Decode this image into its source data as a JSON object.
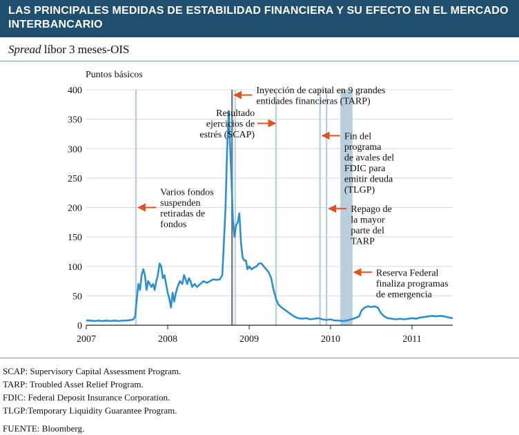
{
  "header": {
    "title": "LAS PRINCIPALES MEDIDAS DE ESTABILIDAD FINANCIERA Y SU EFECTO EN EL MERCADO INTERBANCARIO"
  },
  "subtitle": {
    "italic_part": "Spread",
    "rest": " líbor 3 meses-OIS"
  },
  "footnotes": [
    "SCAP: Supervisory Capital Assessment Program.",
    "TARP:  Troubled Asset Relief Program.",
    "FDIC: Federal Deposit Insurance Corporation.",
    "TLGP:Temporary Liquidity Guarantee Program."
  ],
  "source": "FUENTE: Bloomberg.",
  "colors": {
    "line": "#2a8fd0",
    "event_band": "#b9cfdd",
    "event_band_dark": "#6b7f8e",
    "arrow": "#e0531f",
    "grid": "#d8d8d8",
    "title_bg": "#1f4e6e"
  },
  "chart_data": {
    "type": "line",
    "ylabel": "Puntos básicos",
    "ylim": [
      0,
      400
    ],
    "yticks": [
      0,
      50,
      100,
      150,
      200,
      250,
      300,
      350,
      400
    ],
    "xlim": [
      2007.0,
      2011.5
    ],
    "xticks": [
      2007,
      2008,
      2009,
      2010,
      2011
    ],
    "x_tick_labels": [
      "2007",
      "2008",
      "2009",
      "2010",
      "2011"
    ],
    "grid": true,
    "series": [
      {
        "values": [
          [
            2007.0,
            8
          ],
          [
            2007.05,
            8
          ],
          [
            2007.1,
            7
          ],
          [
            2007.15,
            8
          ],
          [
            2007.2,
            7
          ],
          [
            2007.25,
            8
          ],
          [
            2007.3,
            7
          ],
          [
            2007.35,
            8
          ],
          [
            2007.4,
            7
          ],
          [
            2007.45,
            8
          ],
          [
            2007.5,
            8
          ],
          [
            2007.55,
            9
          ],
          [
            2007.58,
            10
          ],
          [
            2007.6,
            15
          ],
          [
            2007.62,
            45
          ],
          [
            2007.64,
            70
          ],
          [
            2007.66,
            60
          ],
          [
            2007.68,
            85
          ],
          [
            2007.7,
            95
          ],
          [
            2007.72,
            85
          ],
          [
            2007.74,
            60
          ],
          [
            2007.76,
            75
          ],
          [
            2007.78,
            70
          ],
          [
            2007.8,
            65
          ],
          [
            2007.82,
            70
          ],
          [
            2007.84,
            60
          ],
          [
            2007.86,
            75
          ],
          [
            2007.88,
            85
          ],
          [
            2007.9,
            105
          ],
          [
            2007.92,
            100
          ],
          [
            2007.94,
            80
          ],
          [
            2007.96,
            85
          ],
          [
            2007.98,
            70
          ],
          [
            2008.0,
            55
          ],
          [
            2008.02,
            45
          ],
          [
            2008.04,
            30
          ],
          [
            2008.06,
            55
          ],
          [
            2008.08,
            40
          ],
          [
            2008.1,
            55
          ],
          [
            2008.12,
            65
          ],
          [
            2008.15,
            75
          ],
          [
            2008.18,
            70
          ],
          [
            2008.2,
            85
          ],
          [
            2008.22,
            78
          ],
          [
            2008.24,
            70
          ],
          [
            2008.26,
            80
          ],
          [
            2008.28,
            75
          ],
          [
            2008.3,
            65
          ],
          [
            2008.33,
            70
          ],
          [
            2008.36,
            65
          ],
          [
            2008.4,
            70
          ],
          [
            2008.44,
            75
          ],
          [
            2008.48,
            72
          ],
          [
            2008.52,
            75
          ],
          [
            2008.56,
            78
          ],
          [
            2008.6,
            77
          ],
          [
            2008.64,
            78
          ],
          [
            2008.67,
            85
          ],
          [
            2008.69,
            140
          ],
          [
            2008.71,
            200
          ],
          [
            2008.73,
            300
          ],
          [
            2008.75,
            364
          ],
          [
            2008.77,
            290
          ],
          [
            2008.78,
            260
          ],
          [
            2008.8,
            180
          ],
          [
            2008.82,
            150
          ],
          [
            2008.84,
            170
          ],
          [
            2008.86,
            175
          ],
          [
            2008.88,
            190
          ],
          [
            2008.9,
            140
          ],
          [
            2008.92,
            115
          ],
          [
            2008.94,
            110
          ],
          [
            2008.96,
            110
          ],
          [
            2008.98,
            95
          ],
          [
            2009.0,
            100
          ],
          [
            2009.03,
            95
          ],
          [
            2009.06,
            98
          ],
          [
            2009.09,
            100
          ],
          [
            2009.12,
            105
          ],
          [
            2009.15,
            105
          ],
          [
            2009.18,
            100
          ],
          [
            2009.21,
            95
          ],
          [
            2009.24,
            90
          ],
          [
            2009.27,
            80
          ],
          [
            2009.3,
            60
          ],
          [
            2009.33,
            45
          ],
          [
            2009.36,
            35
          ],
          [
            2009.4,
            30
          ],
          [
            2009.45,
            25
          ],
          [
            2009.5,
            20
          ],
          [
            2009.55,
            15
          ],
          [
            2009.6,
            12
          ],
          [
            2009.65,
            11
          ],
          [
            2009.7,
            12
          ],
          [
            2009.75,
            10
          ],
          [
            2009.8,
            11
          ],
          [
            2009.85,
            12
          ],
          [
            2009.9,
            10
          ],
          [
            2009.95,
            9
          ],
          [
            2010.0,
            10
          ],
          [
            2010.05,
            8
          ],
          [
            2010.1,
            8
          ],
          [
            2010.15,
            7
          ],
          [
            2010.2,
            8
          ],
          [
            2010.25,
            10
          ],
          [
            2010.3,
            12
          ],
          [
            2010.35,
            15
          ],
          [
            2010.38,
            25
          ],
          [
            2010.42,
            30
          ],
          [
            2010.46,
            32
          ],
          [
            2010.5,
            31
          ],
          [
            2010.54,
            32
          ],
          [
            2010.58,
            30
          ],
          [
            2010.62,
            20
          ],
          [
            2010.66,
            15
          ],
          [
            2010.7,
            12
          ],
          [
            2010.75,
            11
          ],
          [
            2010.8,
            10
          ],
          [
            2010.85,
            11
          ],
          [
            2010.9,
            10
          ],
          [
            2010.95,
            11
          ],
          [
            2011.0,
            12
          ],
          [
            2011.05,
            11
          ],
          [
            2011.1,
            13
          ],
          [
            2011.15,
            14
          ],
          [
            2011.2,
            15
          ],
          [
            2011.25,
            16
          ],
          [
            2011.3,
            15
          ],
          [
            2011.35,
            16
          ],
          [
            2011.4,
            15
          ],
          [
            2011.45,
            13
          ],
          [
            2011.5,
            12
          ]
        ]
      }
    ],
    "event_bands": [
      {
        "from": 2007.6,
        "to": 2007.62,
        "style": "light"
      },
      {
        "from": 2008.78,
        "to": 2008.8,
        "style": "dark"
      },
      {
        "from": 2008.82,
        "to": 2008.83,
        "style": "light"
      },
      {
        "from": 2009.32,
        "to": 2009.34,
        "style": "light"
      },
      {
        "from": 2009.86,
        "to": 2009.88,
        "style": "light"
      },
      {
        "from": 2009.94,
        "to": 2009.96,
        "style": "light"
      },
      {
        "from": 2010.12,
        "to": 2010.27,
        "style": "light"
      }
    ],
    "annotations": [
      {
        "lines": [
          "Varios fondos",
          "suspenden",
          "retiradas de",
          "fondos"
        ],
        "arrow_x": 2007.62,
        "arrow_y": 200,
        "arrow_dir": "left",
        "anchor": "right-of-arrow"
      },
      {
        "lines": [
          "Resultado",
          "ejercicios de",
          "estrés (SCAP)"
        ],
        "arrow_x": 2009.34,
        "arrow_y": 343,
        "arrow_dir": "right",
        "anchor": "left-of-arrow"
      },
      {
        "lines": [
          "Inyección de capital en 9 grandes",
          "entidades financieras (TARP)"
        ],
        "arrow_x": 2008.8,
        "arrow_y": 391,
        "arrow_dir": "left",
        "anchor": "right-of-arrow"
      },
      {
        "lines": [
          "Fin del",
          "programa",
          "de avales del",
          "FDIC para",
          "emitir deuda",
          "(TLGP)"
        ],
        "arrow_x": 2009.88,
        "arrow_y": 322,
        "arrow_dir": "left",
        "anchor": "right-of-arrow"
      },
      {
        "lines": [
          "Repago de",
          "la mayor",
          "parte del",
          "TARP"
        ],
        "arrow_x": 2009.96,
        "arrow_y": 198,
        "arrow_dir": "left",
        "anchor": "right-of-arrow"
      },
      {
        "lines": [
          "Reserva Federal",
          "finaliza programas",
          "de emergencia"
        ],
        "arrow_x": 2010.27,
        "arrow_y": 90,
        "arrow_dir": "left",
        "anchor": "right-of-arrow"
      }
    ]
  }
}
